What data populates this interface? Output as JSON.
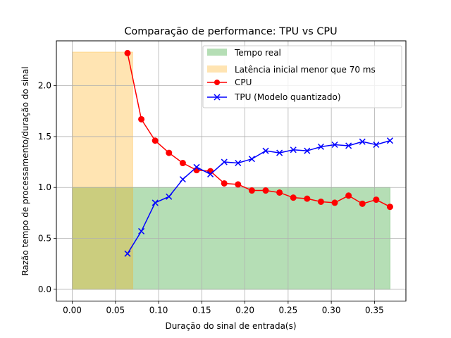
{
  "chart_data": {
    "type": "line",
    "title": "Comparação de performance: TPU vs CPU",
    "xlabel": "Duração do sinal de entrada(s)",
    "ylabel": "Razão tempo de processamento/duração do sinal",
    "xlim": [
      -0.0184,
      0.3864
    ],
    "ylim": [
      -0.1162,
      2.4402
    ],
    "xticks": [
      0.0,
      0.05,
      0.1,
      0.15,
      0.2,
      0.25,
      0.3,
      0.35
    ],
    "xtick_labels": [
      "0.00",
      "0.05",
      "0.10",
      "0.15",
      "0.20",
      "0.25",
      "0.30",
      "0.35"
    ],
    "yticks": [
      0.0,
      0.5,
      1.0,
      1.5,
      2.0
    ],
    "ytick_labels": [
      "0.0",
      "0.5",
      "1.0",
      "1.5",
      "2.0"
    ],
    "grid": true,
    "legend_position": "top-right",
    "regions": [
      {
        "name": "Tempo real",
        "x": [
          0.0,
          0.368
        ],
        "y": [
          0.0,
          1.0
        ],
        "color": "#2ca02c",
        "opacity": 0.35
      },
      {
        "name": "Latência inicial menor que 70 ms",
        "x": [
          0.0,
          0.07
        ],
        "y": [
          0.0,
          2.33
        ],
        "color": "#ffa500",
        "opacity": 0.3
      }
    ],
    "series": [
      {
        "name": "CPU",
        "color": "#ff0000",
        "marker": "circle",
        "x": [
          0.064,
          0.08,
          0.096,
          0.112,
          0.128,
          0.144,
          0.16,
          0.176,
          0.192,
          0.208,
          0.224,
          0.24,
          0.256,
          0.272,
          0.288,
          0.304,
          0.32,
          0.336,
          0.352,
          0.368
        ],
        "y": [
          2.32,
          1.67,
          1.46,
          1.34,
          1.24,
          1.17,
          1.16,
          1.04,
          1.03,
          0.97,
          0.97,
          0.95,
          0.9,
          0.89,
          0.86,
          0.85,
          0.92,
          0.84,
          0.88,
          0.81
        ]
      },
      {
        "name": "TPU (Modelo quantizado)",
        "color": "#0000ff",
        "marker": "x",
        "x": [
          0.064,
          0.08,
          0.096,
          0.112,
          0.128,
          0.144,
          0.16,
          0.176,
          0.192,
          0.208,
          0.224,
          0.24,
          0.256,
          0.272,
          0.288,
          0.304,
          0.32,
          0.336,
          0.352,
          0.368
        ],
        "y": [
          0.35,
          0.57,
          0.85,
          0.91,
          1.08,
          1.2,
          1.13,
          1.25,
          1.24,
          1.28,
          1.36,
          1.34,
          1.37,
          1.36,
          1.4,
          1.42,
          1.41,
          1.45,
          1.42,
          1.46
        ]
      }
    ]
  }
}
